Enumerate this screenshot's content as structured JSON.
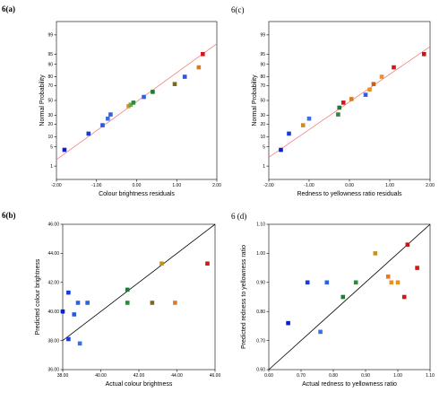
{
  "chart_data": [
    {
      "panel": "6(a)",
      "type": "scatter",
      "xlabel": "Colour brightness residuals",
      "ylabel": "Normal Probability",
      "xlim": [
        -2.0,
        2.0
      ],
      "xticks": [
        "-2.00",
        "-1.00",
        "0.00",
        "1.00",
        "2.00"
      ],
      "xtick_values": [
        -2,
        -1,
        0,
        1,
        2
      ],
      "yticks": [
        "1",
        "5",
        "10",
        "20",
        "30",
        "50",
        "70",
        "80",
        "90",
        "95",
        "99"
      ],
      "ytick_values": [
        1,
        5,
        10,
        20,
        30,
        50,
        70,
        80,
        90,
        95,
        99
      ],
      "y_scale": "normal-probability",
      "reference_line": {
        "x": [
          -2.0,
          2.0
        ],
        "p": [
          1.8,
          97.8
        ],
        "color": "#f47f7f"
      },
      "points": [
        {
          "x": -1.8,
          "p": 4,
          "color": "#0a1fd0"
        },
        {
          "x": -1.2,
          "p": 12,
          "color": "#1a3ad8"
        },
        {
          "x": -0.85,
          "p": 19,
          "color": "#2a56e0"
        },
        {
          "x": -0.72,
          "p": 26,
          "color": "#3a6ee8"
        },
        {
          "x": -0.65,
          "p": 31,
          "color": "#2a62e6"
        },
        {
          "x": -0.2,
          "p": 42,
          "color": "#e89020"
        },
        {
          "x": -0.15,
          "p": 44,
          "color": "#6aa848"
        },
        {
          "x": -0.08,
          "p": 47,
          "color": "#2e8a3a"
        },
        {
          "x": 0.18,
          "p": 55,
          "color": "#2a62e6"
        },
        {
          "x": 0.4,
          "p": 62,
          "color": "#1e7a34"
        },
        {
          "x": 0.95,
          "p": 72,
          "color": "#7a6a20"
        },
        {
          "x": 1.2,
          "p": 80,
          "color": "#2a56e0"
        },
        {
          "x": 1.55,
          "p": 88,
          "color": "#d87c20"
        },
        {
          "x": 1.65,
          "p": 95,
          "color": "#d01818"
        }
      ]
    },
    {
      "panel": "6(c)",
      "type": "scatter",
      "xlabel": "Redness to yellowness ratio residuals",
      "ylabel": "Normal Probability",
      "xlim": [
        -2.0,
        2.0
      ],
      "xticks": [
        "-2.00",
        "-1.00",
        "0.00",
        "1.00",
        "2.00"
      ],
      "xtick_values": [
        -2,
        -1,
        0,
        1,
        2
      ],
      "yticks": [
        "1",
        "5",
        "10",
        "20",
        "30",
        "50",
        "70",
        "80",
        "90",
        "95",
        "99"
      ],
      "ytick_values": [
        1,
        5,
        10,
        20,
        30,
        50,
        70,
        80,
        90,
        95,
        99
      ],
      "y_scale": "normal-probability",
      "reference_line": {
        "x": [
          -2.0,
          2.0
        ],
        "p": [
          2.2,
          97.2
        ],
        "color": "#f47f7f"
      },
      "points": [
        {
          "x": -1.7,
          "p": 4,
          "color": "#0a1fd0"
        },
        {
          "x": -1.5,
          "p": 12,
          "color": "#1a3ad8"
        },
        {
          "x": -1.15,
          "p": 19,
          "color": "#c89020"
        },
        {
          "x": -1.0,
          "p": 26,
          "color": "#3a6ee8"
        },
        {
          "x": -0.28,
          "p": 31,
          "color": "#2e8a3a"
        },
        {
          "x": -0.25,
          "p": 40,
          "color": "#1e7a34"
        },
        {
          "x": -0.15,
          "p": 47,
          "color": "#d01818"
        },
        {
          "x": 0.05,
          "p": 52,
          "color": "#d87c20"
        },
        {
          "x": 0.4,
          "p": 58,
          "color": "#2a62e6"
        },
        {
          "x": 0.5,
          "p": 65,
          "color": "#e89020"
        },
        {
          "x": 0.6,
          "p": 72,
          "color": "#c86018"
        },
        {
          "x": 0.8,
          "p": 80,
          "color": "#e89020"
        },
        {
          "x": 1.1,
          "p": 88,
          "color": "#d01818"
        },
        {
          "x": 1.85,
          "p": 95,
          "color": "#c01818"
        }
      ]
    },
    {
      "panel": "6(b)",
      "type": "scatter",
      "xlabel": "Actual colour brightness",
      "ylabel": "Predicted colour brightness",
      "xlim": [
        38.0,
        46.0
      ],
      "ylim": [
        36.0,
        46.0
      ],
      "xticks": [
        "38.00",
        "40.00",
        "42.00",
        "44.00",
        "46.00"
      ],
      "xtick_values": [
        38,
        40,
        42,
        44,
        46
      ],
      "yticks": [
        "36.00",
        "38.00",
        "40.00",
        "42.00",
        "44.00",
        "46.00"
      ],
      "ytick_values": [
        36,
        38,
        40,
        42,
        44,
        46
      ],
      "reference_line": {
        "x": [
          38.0,
          46.0
        ],
        "y": [
          38.0,
          46.0
        ],
        "color": "#000000"
      },
      "points": [
        {
          "x": 38.0,
          "y": 40.0,
          "color": "#0a1fd0"
        },
        {
          "x": 38.3,
          "y": 38.1,
          "color": "#1a3ad8"
        },
        {
          "x": 38.3,
          "y": 41.3,
          "color": "#1a3ad8"
        },
        {
          "x": 38.6,
          "y": 39.8,
          "color": "#2a56e0"
        },
        {
          "x": 38.8,
          "y": 40.6,
          "color": "#2a62e6"
        },
        {
          "x": 38.9,
          "y": 37.8,
          "color": "#3a6ee8"
        },
        {
          "x": 39.3,
          "y": 40.6,
          "color": "#2a62e6"
        },
        {
          "x": 41.4,
          "y": 41.5,
          "color": "#1e7a34"
        },
        {
          "x": 41.4,
          "y": 40.6,
          "color": "#2e8a3a"
        },
        {
          "x": 42.7,
          "y": 40.6,
          "color": "#7a6a20"
        },
        {
          "x": 43.2,
          "y": 43.3,
          "color": "#c89020"
        },
        {
          "x": 43.9,
          "y": 40.6,
          "color": "#e07830"
        },
        {
          "x": 45.6,
          "y": 43.3,
          "color": "#d01818"
        }
      ]
    },
    {
      "panel": "6 (d)",
      "type": "scatter",
      "xlabel": "Actual redness to yellowness ratio",
      "ylabel": "Predicted redness to yellowness ratio",
      "xlim": [
        0.6,
        1.1
      ],
      "ylim": [
        0.6,
        1.1
      ],
      "xticks": [
        "0.60",
        "0.70",
        "0.80",
        "0.90",
        "1.00",
        "1.10"
      ],
      "xtick_values": [
        0.6,
        0.7,
        0.8,
        0.9,
        1.0,
        1.1
      ],
      "yticks": [
        "0.60",
        "0.70",
        "0.80",
        "0.90",
        "1.00",
        "1.10"
      ],
      "ytick_values": [
        0.6,
        0.7,
        0.8,
        0.9,
        1.0,
        1.1
      ],
      "reference_line": {
        "x": [
          0.6,
          1.1
        ],
        "y": [
          0.6,
          1.1
        ],
        "color": "#000000"
      },
      "points": [
        {
          "x": 0.66,
          "y": 0.76,
          "color": "#0a1fd0"
        },
        {
          "x": 0.72,
          "y": 0.9,
          "color": "#1a3ad8"
        },
        {
          "x": 0.76,
          "y": 0.73,
          "color": "#3a6ee8"
        },
        {
          "x": 0.78,
          "y": 0.9,
          "color": "#2a62e6"
        },
        {
          "x": 0.83,
          "y": 0.85,
          "color": "#1e7a34"
        },
        {
          "x": 0.87,
          "y": 0.9,
          "color": "#2e8a3a"
        },
        {
          "x": 0.93,
          "y": 1.0,
          "color": "#c89020"
        },
        {
          "x": 0.97,
          "y": 0.92,
          "color": "#e07830"
        },
        {
          "x": 0.98,
          "y": 0.9,
          "color": "#e89020"
        },
        {
          "x": 1.0,
          "y": 0.9,
          "color": "#e89020"
        },
        {
          "x": 1.02,
          "y": 0.85,
          "color": "#d01818"
        },
        {
          "x": 1.03,
          "y": 1.03,
          "color": "#c01818"
        },
        {
          "x": 1.06,
          "y": 0.95,
          "color": "#d01818"
        }
      ]
    }
  ]
}
